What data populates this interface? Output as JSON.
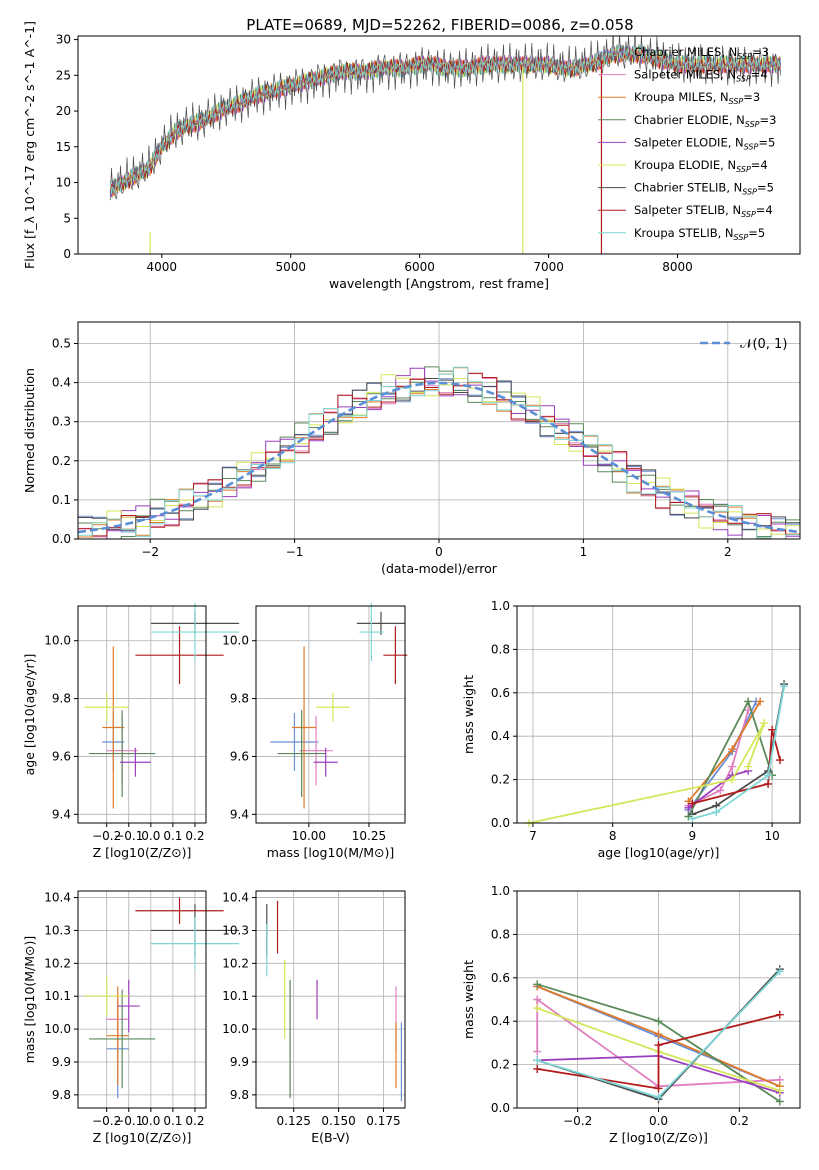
{
  "title": "PLATE=0689, MJD=52262, FIBERID=0086, z=0.058",
  "colors": {
    "Chabrier MILES": "#6a8fd6",
    "Salpeter MILES": "#e07fc0",
    "Kroupa MILES": "#e07a2a",
    "Chabrier ELODIE": "#5a8a5a",
    "Salpeter ELODIE": "#9b3fbf",
    "Kroupa ELODIE": "#d6e65a",
    "Chabrier STELIB": "#4d4d4d",
    "Salpeter STELIB": "#b01c1c",
    "Kroupa STELIB": "#7fd6d6",
    "normal_curve": "#5a8fd6"
  },
  "chart_data": [
    {
      "type": "line",
      "title": "PLATE=0689, MJD=52262, FIBERID=0086, z=0.058",
      "xlabel": "wavelength [Angstrom, rest frame]",
      "ylabel": "Flux [f_λ 10^-17 erg cm^-2 s^-1 A^-1]",
      "xlim": [
        3350,
        8950
      ],
      "ylim": [
        0,
        30.5
      ],
      "xticks": [
        "4000",
        "5000",
        "6000",
        "7000",
        "8000"
      ],
      "yticks": [
        "0",
        "5",
        "10",
        "15",
        "20",
        "25",
        "30"
      ],
      "spectrum_x": [
        3600,
        3700,
        3800,
        3900,
        4000,
        4100,
        4200,
        4300,
        4400,
        4500,
        4600,
        4700,
        4800,
        4900,
        5000,
        5100,
        5200,
        5300,
        5400,
        5500,
        5600,
        5700,
        5800,
        5900,
        6000,
        6100,
        6200,
        6300,
        6400,
        6500,
        6600,
        6700,
        6800,
        6900,
        7000,
        7100,
        7200,
        7300,
        7400,
        7500,
        7600,
        7700,
        7800,
        7900,
        8000,
        8100,
        8200,
        8300,
        8400,
        8500,
        8600,
        8700,
        8800
      ],
      "spectrum_y": [
        9,
        10,
        11,
        12,
        15,
        17,
        18,
        18.5,
        19.5,
        20.5,
        21,
        22,
        22.5,
        23,
        23.5,
        24,
        24.5,
        25,
        25.5,
        25.5,
        25.5,
        26,
        26,
        26,
        26.5,
        26.5,
        26,
        26,
        26,
        26.5,
        26.5,
        26.5,
        26.5,
        26.5,
        26.5,
        26,
        26,
        26.5,
        27,
        28,
        28,
        28,
        27.5,
        27,
        26.5,
        26.5,
        26.5,
        26.5,
        26.5,
        26.5,
        26.5,
        26.5,
        26.5
      ],
      "legend_position": "right",
      "series": [
        {
          "name": "Chabrier MILES, N_SSP=3",
          "label": "Chabrier MILES, N",
          "sub": "SSP",
          "suffix": "=3"
        },
        {
          "name": "Salpeter MILES, N_SSP=4",
          "label": "Salpeter MILES, N",
          "sub": "SSP",
          "suffix": "=4"
        },
        {
          "name": "Kroupa MILES, N_SSP=3",
          "label": "Kroupa MILES, N",
          "sub": "SSP",
          "suffix": "=3"
        },
        {
          "name": "Chabrier ELODIE, N_SSP=3",
          "label": "Chabrier ELODIE, N",
          "sub": "SSP",
          "suffix": "=3"
        },
        {
          "name": "Salpeter ELODIE, N_SSP=5",
          "label": "Salpeter ELODIE, N",
          "sub": "SSP",
          "suffix": "=5"
        },
        {
          "name": "Kroupa ELODIE, N_SSP=4",
          "label": "Kroupa ELODIE, N",
          "sub": "SSP",
          "suffix": "=4"
        },
        {
          "name": "Chabrier STELIB, N_SSP=5",
          "label": "Chabrier STELIB, N",
          "sub": "SSP",
          "suffix": "=5"
        },
        {
          "name": "Salpeter STELIB, N_SSP=4",
          "label": "Salpeter STELIB, N",
          "sub": "SSP",
          "suffix": "=4"
        },
        {
          "name": "Kroupa STELIB, N_SSP=5",
          "label": "Kroupa STELIB, N",
          "sub": "SSP",
          "suffix": "=5"
        }
      ]
    },
    {
      "type": "line",
      "xlabel": "(data-model)/error",
      "ylabel": "Normed distribution",
      "xlim": [
        -2.5,
        2.5
      ],
      "ylim": [
        0,
        0.555
      ],
      "xticks": [
        "−2",
        "−1",
        "0",
        "1",
        "2"
      ],
      "yticks": [
        "0.0",
        "0.1",
        "0.2",
        "0.3",
        "0.4",
        "0.5"
      ],
      "legend_label": "𝒩(0, 1)",
      "series": [
        {
          "name": "𝒩(0, 1)",
          "x": [
            -2.5,
            -2,
            -1.5,
            -1,
            -0.5,
            0,
            0.5,
            1,
            1.5,
            2,
            2.5
          ],
          "y": [
            0.018,
            0.054,
            0.13,
            0.242,
            0.352,
            0.399,
            0.352,
            0.242,
            0.13,
            0.054,
            0.018
          ]
        }
      ]
    },
    {
      "type": "scatter",
      "xlabel": "Z [log10(Z/Z⊙)]",
      "ylabel": "age  [log10(age/yr)]",
      "xlim": [
        -0.33,
        0.25
      ],
      "ylim": [
        9.37,
        10.12
      ],
      "xticks": [
        "−0.2",
        "−0.1",
        "0.0",
        "0.1",
        "0.2"
      ],
      "yticks": [
        "9.4",
        "9.6",
        "9.8",
        "10.0"
      ],
      "points": [
        {
          "series": "Chabrier MILES",
          "x": -0.17,
          "y": 9.65,
          "xerr": 0.05,
          "yerr": 0.1
        },
        {
          "series": "Salpeter MILES",
          "x": -0.13,
          "y": 9.62,
          "xerr": 0.07,
          "yerr": 0.12
        },
        {
          "series": "Kroupa MILES",
          "x": -0.17,
          "y": 9.7,
          "xerr": 0.05,
          "yerr": 0.28
        },
        {
          "series": "Chabrier ELODIE",
          "x": -0.13,
          "y": 9.61,
          "xerr": 0.15,
          "yerr": 0.15
        },
        {
          "series": "Salpeter ELODIE",
          "x": -0.07,
          "y": 9.58,
          "xerr": 0.07,
          "yerr": 0.05
        },
        {
          "series": "Kroupa ELODIE",
          "x": -0.2,
          "y": 9.77,
          "xerr": 0.1,
          "yerr": 0.05
        },
        {
          "series": "Chabrier STELIB",
          "x": 0.2,
          "y": 10.06,
          "xerr": 0.2,
          "yerr": 0.04
        },
        {
          "series": "Salpeter STELIB",
          "x": 0.13,
          "y": 9.95,
          "xerr": 0.2,
          "yerr": 0.1
        },
        {
          "series": "Kroupa STELIB",
          "x": 0.2,
          "y": 10.03,
          "xerr": 0.2,
          "yerr": 0.1
        }
      ]
    },
    {
      "type": "scatter",
      "xlabel": "mass [log10(M/M⊙)]",
      "ylabel": "",
      "xlim": [
        9.78,
        10.4
      ],
      "ylim": [
        9.37,
        10.12
      ],
      "xticks": [
        "10.00",
        "10.25"
      ],
      "yticks": [
        "9.4",
        "9.6",
        "9.8",
        "10.0"
      ],
      "points": [
        {
          "series": "Chabrier MILES",
          "x": 9.94,
          "y": 9.65,
          "xerr": 0.1,
          "yerr": 0.1
        },
        {
          "series": "Salpeter MILES",
          "x": 10.03,
          "y": 9.62,
          "xerr": 0.07,
          "yerr": 0.12
        },
        {
          "series": "Kroupa MILES",
          "x": 9.98,
          "y": 9.7,
          "xerr": 0.05,
          "yerr": 0.28
        },
        {
          "series": "Chabrier ELODIE",
          "x": 9.97,
          "y": 9.61,
          "xerr": 0.1,
          "yerr": 0.15
        },
        {
          "series": "Salpeter ELODIE",
          "x": 10.07,
          "y": 9.58,
          "xerr": 0.05,
          "yerr": 0.05
        },
        {
          "series": "Kroupa ELODIE",
          "x": 10.1,
          "y": 9.77,
          "xerr": 0.07,
          "yerr": 0.05
        },
        {
          "series": "Chabrier STELIB",
          "x": 10.3,
          "y": 10.06,
          "xerr": 0.1,
          "yerr": 0.04
        },
        {
          "series": "Salpeter STELIB",
          "x": 10.36,
          "y": 9.95,
          "xerr": 0.05,
          "yerr": 0.1
        },
        {
          "series": "Kroupa STELIB",
          "x": 10.26,
          "y": 10.03,
          "xerr": 0.05,
          "yerr": 0.1
        }
      ]
    },
    {
      "type": "line",
      "xlabel": "age  [log10(age/yr)]",
      "ylabel": "mass weight",
      "xlim": [
        6.8,
        10.35
      ],
      "ylim": [
        0,
        1
      ],
      "xticks": [
        "7",
        "8",
        "9",
        "10"
      ],
      "yticks": [
        "0.0",
        "0.2",
        "0.4",
        "0.6",
        "0.8",
        "1.0"
      ],
      "series": [
        {
          "name": "Chabrier MILES",
          "x": [
            8.95,
            9.5,
            9.8
          ],
          "y": [
            0.06,
            0.33,
            0.56
          ]
        },
        {
          "name": "Salpeter MILES",
          "x": [
            8.95,
            9.35,
            9.5,
            9.7
          ],
          "y": [
            0.08,
            0.15,
            0.26,
            0.52
          ]
        },
        {
          "name": "Kroupa MILES",
          "x": [
            8.95,
            9.5,
            9.85
          ],
          "y": [
            0.1,
            0.34,
            0.56
          ]
        },
        {
          "name": "Chabrier ELODIE",
          "x": [
            8.95,
            9.7,
            10.0
          ],
          "y": [
            0.03,
            0.56,
            0.22
          ]
        },
        {
          "name": "Salpeter ELODIE",
          "x": [
            8.95,
            9.5,
            9.7
          ],
          "y": [
            0.07,
            0.22,
            0.24
          ]
        },
        {
          "name": "Kroupa ELODIE",
          "x": [
            6.95,
            9.5,
            9.9,
            9.7
          ],
          "y": [
            0.0,
            0.2,
            0.46,
            0.26
          ]
        },
        {
          "name": "Chabrier STELIB",
          "x": [
            9.0,
            9.3,
            9.95,
            10.15
          ],
          "y": [
            0.04,
            0.08,
            0.24,
            0.64
          ]
        },
        {
          "name": "Salpeter STELIB",
          "x": [
            9.0,
            9.95,
            10.0,
            10.1
          ],
          "y": [
            0.09,
            0.18,
            0.43,
            0.29
          ]
        },
        {
          "name": "Kroupa STELIB",
          "x": [
            9.0,
            9.3,
            9.95,
            10.15
          ],
          "y": [
            0.02,
            0.05,
            0.22,
            0.63
          ]
        }
      ]
    },
    {
      "type": "scatter",
      "xlabel": "Z [log10(Z/Z⊙)]",
      "ylabel": "mass [log10(M/M⊙)]",
      "xlim": [
        -0.33,
        0.25
      ],
      "ylim": [
        9.76,
        10.42
      ],
      "xticks": [
        "−0.2",
        "−0.1",
        "0.0",
        "0.1",
        "0.2"
      ],
      "yticks": [
        "9.8",
        "9.9",
        "10.0",
        "10.1",
        "10.2",
        "10.3",
        "10.4"
      ],
      "points": [
        {
          "series": "Chabrier MILES",
          "x": -0.15,
          "y": 9.94,
          "xerr": 0.05,
          "yerr": 0.15
        },
        {
          "series": "Salpeter MILES",
          "x": -0.15,
          "y": 10.03,
          "xerr": 0.05,
          "yerr": 0.08
        },
        {
          "series": "Kroupa MILES",
          "x": -0.15,
          "y": 9.98,
          "xerr": 0.05,
          "yerr": 0.15
        },
        {
          "series": "Chabrier ELODIE",
          "x": -0.13,
          "y": 9.97,
          "xerr": 0.15,
          "yerr": 0.15
        },
        {
          "series": "Salpeter ELODIE",
          "x": -0.1,
          "y": 10.07,
          "xerr": 0.05,
          "yerr": 0.08
        },
        {
          "series": "Kroupa ELODIE",
          "x": -0.2,
          "y": 10.1,
          "xerr": 0.1,
          "yerr": 0.06
        },
        {
          "series": "Chabrier STELIB",
          "x": 0.2,
          "y": 10.3,
          "xerr": 0.2,
          "yerr": 0.08
        },
        {
          "series": "Salpeter STELIB",
          "x": 0.13,
          "y": 10.36,
          "xerr": 0.2,
          "yerr": 0.04
        },
        {
          "series": "Kroupa STELIB",
          "x": 0.2,
          "y": 10.26,
          "xerr": 0.2,
          "yerr": 0.08
        }
      ]
    },
    {
      "type": "scatter",
      "xlabel": "E(B-V)",
      "ylabel": "",
      "xlim": [
        0.104,
        0.187
      ],
      "ylim": [
        9.76,
        10.42
      ],
      "xticks": [
        "0.125",
        "0.150",
        "0.175"
      ],
      "yticks": [
        "9.8",
        "9.9",
        "10.0",
        "10.1",
        "10.2",
        "10.3",
        "10.4"
      ],
      "points": [
        {
          "series": "Chabrier MILES",
          "x": 0.185,
          "y": 9.9,
          "xerr": 0.0,
          "yerr": 0.12
        },
        {
          "series": "Salpeter MILES",
          "x": 0.182,
          "y": 10.03,
          "xerr": 0.0,
          "yerr": 0.1
        },
        {
          "series": "Kroupa MILES",
          "x": 0.182,
          "y": 9.92,
          "xerr": 0.0,
          "yerr": 0.1
        },
        {
          "series": "Chabrier ELODIE",
          "x": 0.123,
          "y": 9.97,
          "xerr": 0.0,
          "yerr": 0.18
        },
        {
          "series": "Salpeter ELODIE",
          "x": 0.138,
          "y": 10.09,
          "xerr": 0.0,
          "yerr": 0.06
        },
        {
          "series": "Kroupa ELODIE",
          "x": 0.12,
          "y": 10.09,
          "xerr": 0.0,
          "yerr": 0.12
        },
        {
          "series": "Chabrier STELIB",
          "x": 0.11,
          "y": 10.3,
          "xerr": 0.0,
          "yerr": 0.08
        },
        {
          "series": "Salpeter STELIB",
          "x": 0.116,
          "y": 10.31,
          "xerr": 0.0,
          "yerr": 0.08
        },
        {
          "series": "Kroupa STELIB",
          "x": 0.11,
          "y": 10.24,
          "xerr": 0.0,
          "yerr": 0.08
        }
      ]
    },
    {
      "type": "line",
      "xlabel": "Z [log10(Z/Z⊙)]",
      "ylabel": "mass weight",
      "xlim": [
        -0.35,
        0.35
      ],
      "ylim": [
        0,
        1
      ],
      "xticks": [
        "−0.2",
        "0.0",
        "0.2"
      ],
      "yticks": [
        "0.0",
        "0.2",
        "0.4",
        "0.6",
        "0.8",
        "1.0"
      ],
      "series": [
        {
          "name": "Chabrier MILES",
          "x": [
            -0.3,
            0.0,
            0.3
          ],
          "y": [
            0.56,
            0.33,
            0.1
          ]
        },
        {
          "name": "Salpeter MILES",
          "x": [
            -0.3,
            -0.3,
            0.0,
            0.3
          ],
          "y": [
            0.26,
            0.5,
            0.1,
            0.13
          ]
        },
        {
          "name": "Kroupa MILES",
          "x": [
            -0.3,
            0.0,
            0.3
          ],
          "y": [
            0.56,
            0.34,
            0.1
          ]
        },
        {
          "name": "Chabrier ELODIE",
          "x": [
            -0.3,
            0.0,
            0.3
          ],
          "y": [
            0.57,
            0.4,
            0.03
          ]
        },
        {
          "name": "Salpeter ELODIE",
          "x": [
            -0.3,
            0.0,
            0.3
          ],
          "y": [
            0.22,
            0.24,
            0.07
          ]
        },
        {
          "name": "Kroupa ELODIE",
          "x": [
            -0.3,
            0.0,
            0.3
          ],
          "y": [
            0.46,
            0.26,
            0.08
          ]
        },
        {
          "name": "Chabrier STELIB",
          "x": [
            -0.3,
            0.0,
            0.3
          ],
          "y": [
            0.22,
            0.04,
            0.64
          ]
        },
        {
          "name": "Salpeter STELIB",
          "x": [
            -0.3,
            0.0,
            0.0,
            0.3
          ],
          "y": [
            0.18,
            0.09,
            0.29,
            0.43
          ]
        },
        {
          "name": "Kroupa STELIB",
          "x": [
            -0.3,
            0.0,
            0.3
          ],
          "y": [
            0.22,
            0.05,
            0.63
          ]
        }
      ]
    }
  ]
}
